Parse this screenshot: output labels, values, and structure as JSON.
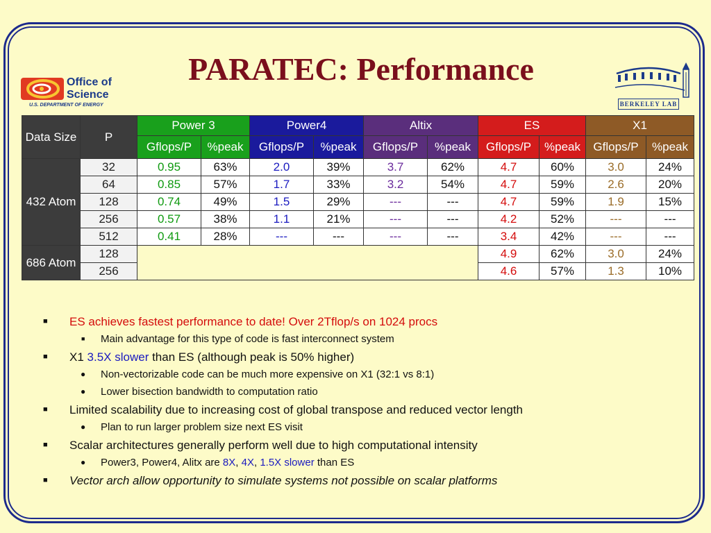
{
  "title": "PARATEC: Performance",
  "logo_left": {
    "line1": "Office of",
    "line2": "Science",
    "line3": "U.S. DEPARTMENT OF ENERGY",
    "icon": "office-of-science-logo"
  },
  "logo_right": {
    "label": "BERKELEY LAB",
    "icon": "berkeley-lab-logo"
  },
  "table": {
    "col_data_size": "Data Size",
    "col_p": "P",
    "groups": [
      "Power 3",
      "Power4",
      "Altix",
      "ES",
      "X1"
    ],
    "sub": [
      "Gflops/P",
      "%peak"
    ],
    "group_432": "432 Atom",
    "group_686": "686 Atom",
    "rows": [
      {
        "p": "32",
        "c": [
          "0.95",
          "63%",
          "2.0",
          "39%",
          "3.7",
          "62%",
          "4.7",
          "60%",
          "3.0",
          "24%"
        ]
      },
      {
        "p": "64",
        "c": [
          "0.85",
          "57%",
          "1.7",
          "33%",
          "3.2",
          "54%",
          "4.7",
          "59%",
          "2.6",
          "20%"
        ]
      },
      {
        "p": "128",
        "c": [
          "0.74",
          "49%",
          "1.5",
          "29%",
          "---",
          "---",
          "4.7",
          "59%",
          "1.9",
          "15%"
        ]
      },
      {
        "p": "256",
        "c": [
          "0.57",
          "38%",
          "1.1",
          "21%",
          "---",
          "---",
          "4.2",
          "52%",
          "---",
          "---"
        ]
      },
      {
        "p": "512",
        "c": [
          "0.41",
          "28%",
          "---",
          "---",
          "---",
          "---",
          "3.4",
          "42%",
          "---",
          "---"
        ]
      },
      {
        "p": "128",
        "c": [
          "4.9",
          "62%",
          "3.0",
          "24%"
        ]
      },
      {
        "p": "256",
        "c": [
          "4.6",
          "57%",
          "1.3",
          "10%"
        ]
      }
    ]
  },
  "bullets": {
    "b1": "ES achieves fastest performance to date! Over 2Tflop/s on 1024 procs",
    "b1_1": "Main advantage for this type of code is fast interconnect system",
    "b2_a": "X1 ",
    "b2_b": "3.5X slower",
    "b2_c": " than ES (although peak is 50% higher)",
    "b2_1": "Non-vectorizable code can be much more expensive on X1 (32:1 vs 8:1)",
    "b2_2": "Lower bisection bandwidth to computation  ratio",
    "b3": "Limited scalability due to increasing cost of global transpose and reduced vector length",
    "b3_1": "Plan to run larger problem size next ES visit",
    "b4": "Scalar architectures generally perform well due to high computational intensity",
    "b4_1_a": "Power3, Power4, Alitx are ",
    "b4_1_b": "8X",
    "b4_1_c": ", ",
    "b4_1_d": "4X",
    "b4_1_e": ", ",
    "b4_1_f": "1.5X slower",
    "b4_1_g": " than ES",
    "b5": "Vector arch allow opportunity to simulate systems not possible on scalar platforms"
  }
}
